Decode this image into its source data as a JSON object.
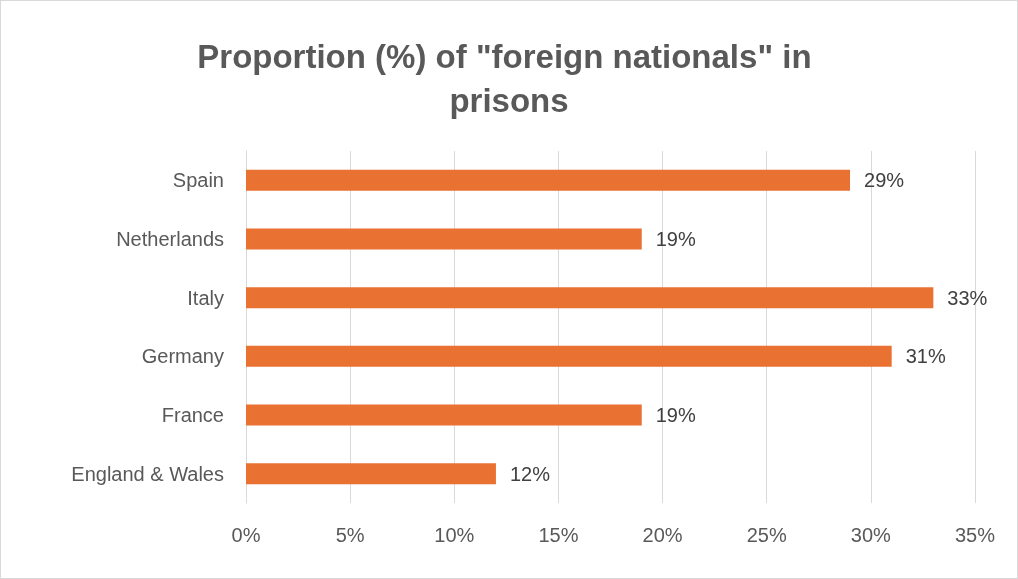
{
  "chart_data": {
    "type": "bar",
    "orientation": "horizontal",
    "title": "Proportion (%) of \"foreign nationals\" in prisons",
    "categories": [
      "Spain",
      "Netherlands",
      "Italy",
      "Germany",
      "France",
      "England & Wales"
    ],
    "values": [
      29,
      19,
      33,
      31,
      19,
      12
    ],
    "value_labels": [
      "29%",
      "19%",
      "33%",
      "31%",
      "19%",
      "12%"
    ],
    "color": "#e97132",
    "xlim": [
      0,
      35
    ],
    "xticks": [
      {
        "value": 0,
        "label": "0%"
      },
      {
        "value": 5,
        "label": "5%"
      },
      {
        "value": 10,
        "label": "10%"
      },
      {
        "value": 15,
        "label": "15%"
      },
      {
        "value": 20,
        "label": "20%"
      },
      {
        "value": 25,
        "label": "25%"
      },
      {
        "value": 30,
        "label": "30%"
      },
      {
        "value": 35,
        "label": "35%"
      }
    ],
    "grid": "x"
  }
}
